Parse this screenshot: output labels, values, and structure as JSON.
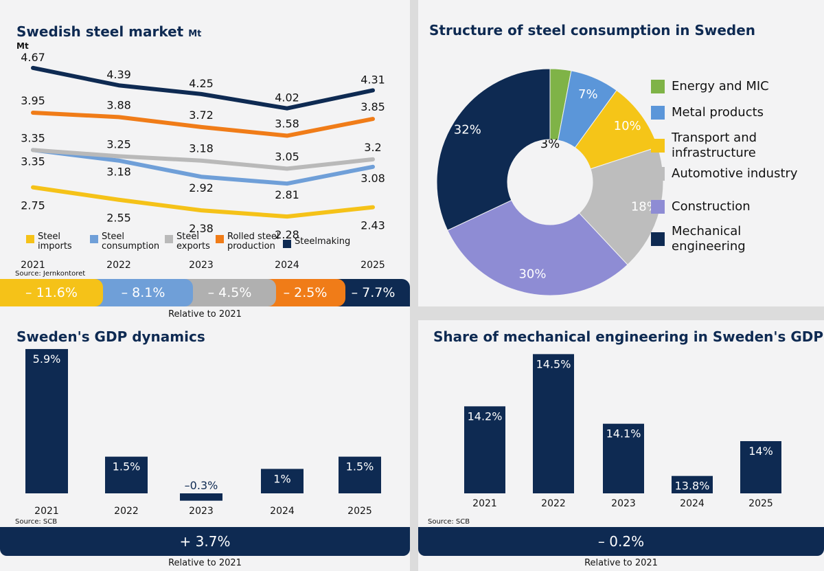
{
  "market": {
    "title": "Swedish steel market",
    "title_unit": "Mt",
    "axis_unit": "Mt",
    "source": "Source: Jernkontoret",
    "relative_label": "Relative to 2021",
    "pills": [
      {
        "text": "– 11.6%",
        "color": "#f5c218"
      },
      {
        "text": "– 8.1%",
        "color": "#6f9fd8"
      },
      {
        "text": "– 4.5%",
        "color": "#b0b0b0"
      },
      {
        "text": "– 2.5%",
        "color": "#f07c18"
      },
      {
        "text": "– 7.7%",
        "color": "#0e2a52"
      }
    ]
  },
  "consumption": {
    "title": "Structure of steel consumption in Sweden"
  },
  "gdp": {
    "title": "Sweden's GDP dynamics",
    "source": "Source: SCB",
    "summary": "+ 3.7%",
    "relative_label": "Relative to 2021"
  },
  "mech": {
    "title": "Share of mechanical engineering in Sweden's GDP",
    "source": "Source: SCB",
    "summary": "– 0.2%",
    "relative_label": "Relative to 2021"
  },
  "chart_data": [
    {
      "type": "line",
      "title": "Swedish steel market",
      "ylabel": "Mt",
      "x": [
        "2021",
        "2022",
        "2023",
        "2024",
        "2025"
      ],
      "series": [
        {
          "name": "Steelmaking",
          "values": [
            4.67,
            4.39,
            4.25,
            4.02,
            4.31
          ],
          "color": "#0e2a52",
          "labels": [
            "4.67",
            "4.39",
            "4.25",
            "4.02",
            "4.31"
          ]
        },
        {
          "name": "Rolled steel production",
          "values": [
            3.95,
            3.88,
            3.72,
            3.58,
            3.85
          ],
          "color": "#f07c18",
          "labels": [
            "3.95",
            "3.88",
            "3.72",
            "3.58",
            "3.85"
          ]
        },
        {
          "name": "Steel exports",
          "values": [
            3.35,
            3.25,
            3.18,
            3.05,
            3.2
          ],
          "color": "#b9b9b9",
          "labels": [
            "3.35",
            "3.25",
            "3.18",
            "3.05",
            "3.2"
          ]
        },
        {
          "name": "Steel consumption",
          "values": [
            3.35,
            3.18,
            2.92,
            2.81,
            3.08
          ],
          "color": "#6f9fd8",
          "labels": [
            "3.35",
            "3.18",
            "2.92",
            "2.81",
            "3.08"
          ]
        },
        {
          "name": "Steel imports",
          "values": [
            2.75,
            2.55,
            2.38,
            2.28,
            2.43
          ],
          "color": "#f5c218",
          "labels": [
            "2.75",
            "2.55",
            "2.38",
            "2.28",
            "2.43"
          ]
        }
      ],
      "legend_order": [
        {
          "name": "Steel imports",
          "color": "#f5c218"
        },
        {
          "name": "Steel consumption",
          "color": "#6f9fd8"
        },
        {
          "name": "Steel exports",
          "color": "#b9b9b9"
        },
        {
          "name": "Rolled steel production",
          "color": "#f07c18"
        },
        {
          "name": "Steelmaking",
          "color": "#0e2a52"
        }
      ],
      "legend_placement": "bottom"
    },
    {
      "type": "pie",
      "donut": true,
      "title": "Structure of steel consumption in Sweden",
      "slices": [
        {
          "name": "Energy and MIC",
          "value": 3,
          "label": "3%",
          "color": "#7fb347"
        },
        {
          "name": "Metal products",
          "value": 7,
          "label": "7%",
          "color": "#5b96d9"
        },
        {
          "name": "Transport and infrastructure",
          "value": 10,
          "label": "10%",
          "color": "#f5c518"
        },
        {
          "name": "Automotive industry",
          "value": 18,
          "label": "18%",
          "color": "#bdbdbd"
        },
        {
          "name": "Construction",
          "value": 30,
          "label": "30%",
          "color": "#8e8cd4"
        },
        {
          "name": "Mechanical engineering",
          "value": 32,
          "label": "32%",
          "color": "#0e2a52"
        }
      ],
      "legend_placement": "right"
    },
    {
      "type": "bar",
      "title": "Sweden's GDP dynamics",
      "categories": [
        "2021",
        "2022",
        "2023",
        "2024",
        "2025"
      ],
      "values": [
        5.9,
        1.5,
        -0.3,
        1,
        1.5
      ],
      "labels": [
        "5.9%",
        "1.5%",
        "–0.3%",
        "1%",
        "1.5%"
      ],
      "color": "#0e2a52"
    },
    {
      "type": "bar",
      "title": "Share of mechanical engineering in Sweden's GDP",
      "categories": [
        "2021",
        "2022",
        "2023",
        "2024",
        "2025"
      ],
      "values": [
        14.2,
        14.5,
        14.1,
        13.8,
        14.0
      ],
      "labels": [
        "14.2%",
        "14.5%",
        "14.1%",
        "13.8%",
        "14%"
      ],
      "color": "#0e2a52"
    }
  ]
}
